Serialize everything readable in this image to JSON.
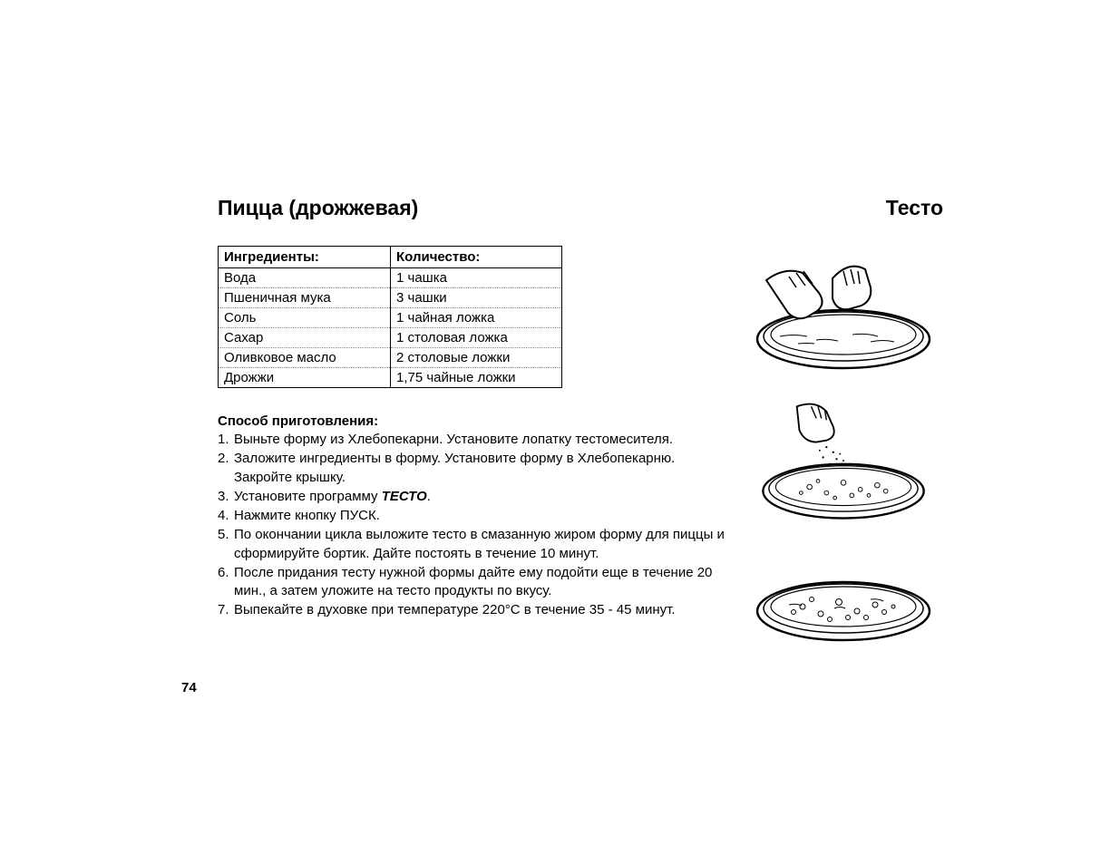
{
  "title_left": "Пицца (дрожжевая)",
  "title_right": "Тесто",
  "table": {
    "header_ingredient": "Ингредиенты:",
    "header_quantity": "Количество:",
    "rows": [
      {
        "ingredient": "Вода",
        "quantity": "1 чашка"
      },
      {
        "ingredient": "Пшеничная мука",
        "quantity": "3 чашки"
      },
      {
        "ingredient": "Соль",
        "quantity": "1 чайная ложка"
      },
      {
        "ingredient": "Сахар",
        "quantity": "1 столовая ложка"
      },
      {
        "ingredient": "Оливковое масло",
        "quantity": "2 столовые ложки"
      },
      {
        "ingredient": "Дрожжи",
        "quantity": "1,75 чайные ложки"
      }
    ]
  },
  "method_title": "Способ приготовления:",
  "steps": [
    "Выньте форму из Хлебопекарни. Установите лопатку тестомесителя.",
    "Заложите ингредиенты в форму. Установите форму в Хлебопекарню. Закройте крышку.",
    "Установите программу {{BOLD:ТЕСТО}}.",
    "Нажмите кнопку ПУСК.",
    "По окончании цикла выложите тесто в смазанную жиром форму для пиццы и сформируйте бортик. Дайте постоять в течение 10 минут.",
    "После придания тесту нужной формы дайте ему подойти еще в течение 20 мин., а затем уложите на тесто продукты по вкусу.",
    "Выпекайте в духовке при температуре 220°С в течение 35 - 45 минут."
  ],
  "page_number": "74",
  "illustration_names": [
    "pizza-step-spread-dough",
    "pizza-step-sprinkle-toppings",
    "pizza-step-finished"
  ],
  "colors": {
    "text": "#000000",
    "background": "#ffffff",
    "table_border": "#000000",
    "row_divider": "#888888"
  },
  "typography": {
    "title_fontsize_pt": 17,
    "body_fontsize_pt": 11,
    "font_family": "Arial"
  }
}
